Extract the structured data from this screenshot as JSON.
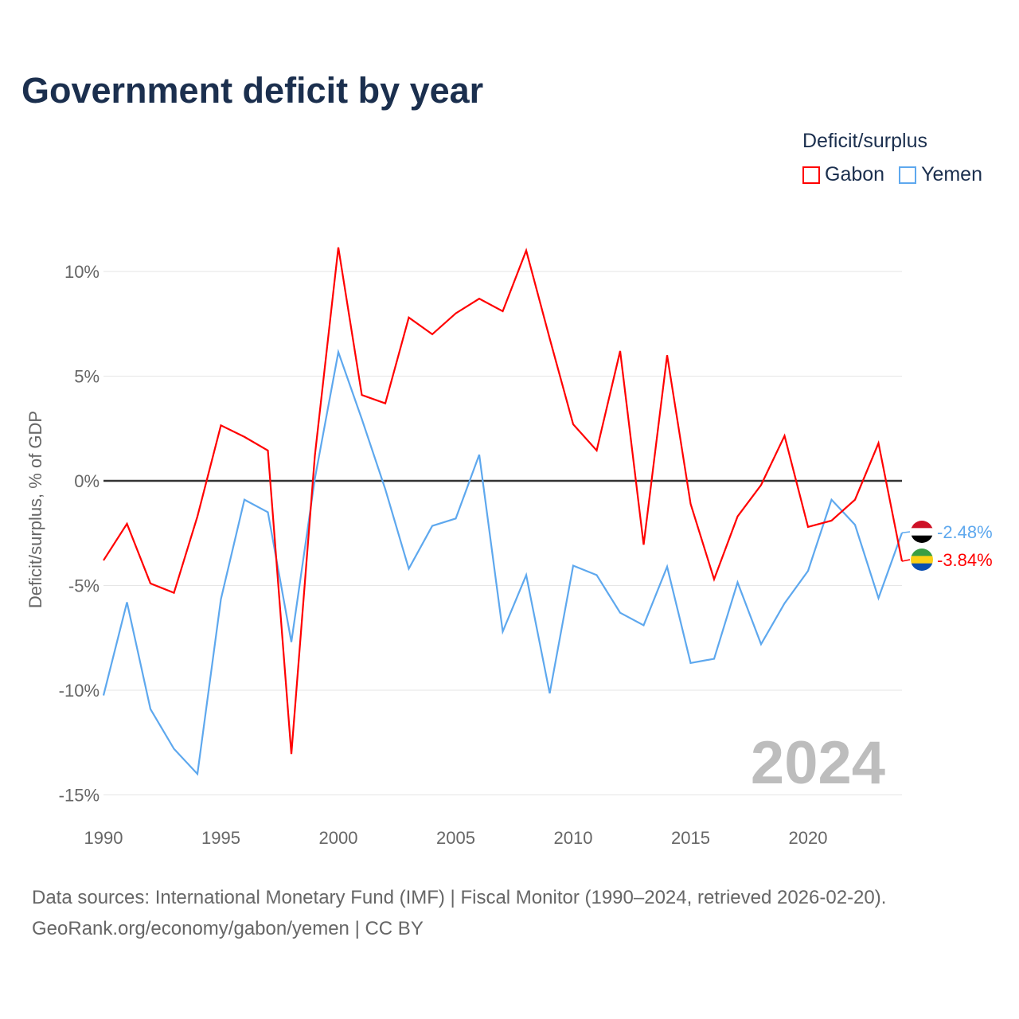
{
  "chart_data": {
    "type": "line",
    "title": "Government deficit by year",
    "ylabel": "Deficit/surplus, % of GDP",
    "xlabel": "",
    "legend_title": "Deficit/surplus",
    "legend_placement": "top-right",
    "ylim": [
      -15.5,
      11.5
    ],
    "xlim": [
      1990,
      2024
    ],
    "yticks": [
      10,
      5,
      0,
      -5,
      -10,
      -15
    ],
    "ytick_labels": [
      "10%",
      "5%",
      "0%",
      "-5%",
      "-10%",
      "-15%"
    ],
    "xticks": [
      1990,
      1995,
      2000,
      2005,
      2010,
      2015,
      2020
    ],
    "xtick_labels": [
      "1990",
      "1995",
      "2000",
      "2005",
      "2010",
      "2015",
      "2020"
    ],
    "year_watermark": "2024",
    "x": [
      1990,
      1991,
      1992,
      1993,
      1994,
      1995,
      1996,
      1997,
      1998,
      1999,
      2000,
      2001,
      2002,
      2003,
      2004,
      2005,
      2006,
      2007,
      2008,
      2009,
      2010,
      2011,
      2012,
      2013,
      2014,
      2015,
      2016,
      2017,
      2018,
      2019,
      2020,
      2021,
      2022,
      2023,
      2024
    ],
    "series": [
      {
        "name": "Gabon",
        "color": "#ff0000",
        "end_label": "-3.84%",
        "values": [
          -3.8,
          -2.05,
          -4.9,
          -5.35,
          -1.7,
          2.65,
          2.1,
          1.45,
          -13.05,
          1.2,
          11.15,
          4.1,
          3.7,
          7.8,
          7.0,
          8.0,
          8.7,
          8.1,
          11.0,
          6.8,
          2.7,
          1.45,
          6.2,
          -3.05,
          6.0,
          -1.1,
          -4.7,
          -1.7,
          -0.2,
          2.15,
          -2.2,
          -1.9,
          -0.9,
          1.8,
          -3.84
        ]
      },
      {
        "name": "Yemen",
        "color": "#5ea8ee",
        "end_label": "-2.48%",
        "values": [
          -10.25,
          -5.8,
          -10.9,
          -12.8,
          -14.0,
          -5.65,
          -0.9,
          -1.5,
          -7.7,
          0.1,
          6.15,
          2.95,
          -0.4,
          -4.2,
          -2.15,
          -1.8,
          1.25,
          -7.2,
          -4.5,
          -10.15,
          -4.05,
          -4.5,
          -6.3,
          -6.9,
          -4.1,
          -8.7,
          -8.5,
          -4.85,
          -7.8,
          -5.85,
          -4.3,
          -0.9,
          -2.1,
          -5.6,
          -2.48
        ]
      }
    ]
  },
  "source_line1": "Data sources: International Monetary Fund (IMF) | Fiscal Monitor (1990–2024, retrieved 2026-02-20).",
  "source_line2": "GeoRank.org/economy/gabon/yemen | CC BY"
}
